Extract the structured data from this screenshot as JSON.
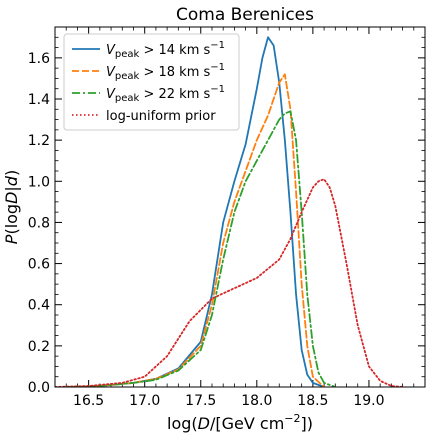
{
  "chart_data": {
    "type": "line",
    "title": "Coma Berenices",
    "xlabel": "log(D/[GeV cm⁻²])",
    "ylabel": "P(logD|d)",
    "xlim": [
      16.2,
      19.5
    ],
    "ylim": [
      0.0,
      1.75
    ],
    "xticks": [
      "16.5",
      "17.0",
      "17.5",
      "18.0",
      "18.5",
      "19.0"
    ],
    "yticks": [
      "0.0",
      "0.2",
      "0.4",
      "0.6",
      "0.8",
      "1.0",
      "1.2",
      "1.4",
      "1.6"
    ],
    "legend_position": "top-left",
    "series": [
      {
        "name": "V_peak > 14 km s⁻¹",
        "legend": {
          "sym": "V",
          "sub": "peak",
          "rest": " > 14 km s",
          "sup": "−1"
        },
        "color": "#1f77b4",
        "style": "solid",
        "x": [
          16.3,
          16.5,
          16.7,
          16.9,
          17.1,
          17.3,
          17.5,
          17.6,
          17.7,
          17.8,
          17.9,
          18.0,
          18.05,
          18.1,
          18.15,
          18.2,
          18.25,
          18.3,
          18.35,
          18.4,
          18.45,
          18.5,
          18.6
        ],
        "y": [
          0.0,
          0.003,
          0.01,
          0.02,
          0.04,
          0.09,
          0.22,
          0.45,
          0.8,
          1.0,
          1.18,
          1.45,
          1.6,
          1.7,
          1.66,
          1.48,
          1.2,
          0.85,
          0.45,
          0.18,
          0.06,
          0.02,
          0.0
        ]
      },
      {
        "name": "V_peak > 18 km s⁻¹",
        "legend": {
          "sym": "V",
          "sub": "peak",
          "rest": " > 18 km s",
          "sup": "−1"
        },
        "color": "#ff7f0e",
        "style": "dashed",
        "x": [
          16.3,
          16.5,
          16.7,
          16.9,
          17.1,
          17.3,
          17.5,
          17.6,
          17.7,
          17.8,
          17.9,
          18.0,
          18.1,
          18.2,
          18.25,
          18.3,
          18.35,
          18.4,
          18.45,
          18.5,
          18.6
        ],
        "y": [
          0.0,
          0.003,
          0.01,
          0.02,
          0.04,
          0.085,
          0.2,
          0.4,
          0.7,
          0.9,
          1.05,
          1.2,
          1.32,
          1.48,
          1.52,
          1.35,
          0.95,
          0.5,
          0.2,
          0.05,
          0.0
        ]
      },
      {
        "name": "V_peak > 22 km s⁻¹",
        "legend": {
          "sym": "V",
          "sub": "peak",
          "rest": " > 22 km s",
          "sup": "−1"
        },
        "color": "#2ca02c",
        "style": "dashdot",
        "x": [
          16.3,
          16.5,
          16.7,
          16.9,
          17.1,
          17.3,
          17.5,
          17.6,
          17.7,
          17.8,
          17.9,
          18.0,
          18.1,
          18.2,
          18.25,
          18.3,
          18.35,
          18.4,
          18.45,
          18.5,
          18.55,
          18.6,
          18.7
        ],
        "y": [
          0.0,
          0.003,
          0.01,
          0.02,
          0.035,
          0.08,
          0.18,
          0.35,
          0.62,
          0.85,
          1.0,
          1.1,
          1.2,
          1.3,
          1.33,
          1.34,
          1.2,
          0.85,
          0.45,
          0.2,
          0.07,
          0.02,
          0.0
        ]
      },
      {
        "name": "log-uniform prior",
        "legend": {
          "sym": "",
          "sub": "",
          "rest": "log-uniform prior",
          "sup": ""
        },
        "color": "#d62728",
        "style": "dotted",
        "x": [
          16.2,
          16.5,
          16.8,
          17.0,
          17.2,
          17.4,
          17.6,
          17.8,
          18.0,
          18.2,
          18.3,
          18.4,
          18.5,
          18.55,
          18.6,
          18.65,
          18.7,
          18.8,
          18.9,
          19.0,
          19.1,
          19.2,
          19.3
        ],
        "y": [
          0.0,
          0.005,
          0.02,
          0.05,
          0.15,
          0.32,
          0.43,
          0.48,
          0.53,
          0.62,
          0.72,
          0.85,
          0.97,
          1.0,
          1.01,
          0.97,
          0.88,
          0.6,
          0.3,
          0.1,
          0.03,
          0.005,
          0.0
        ]
      }
    ]
  }
}
